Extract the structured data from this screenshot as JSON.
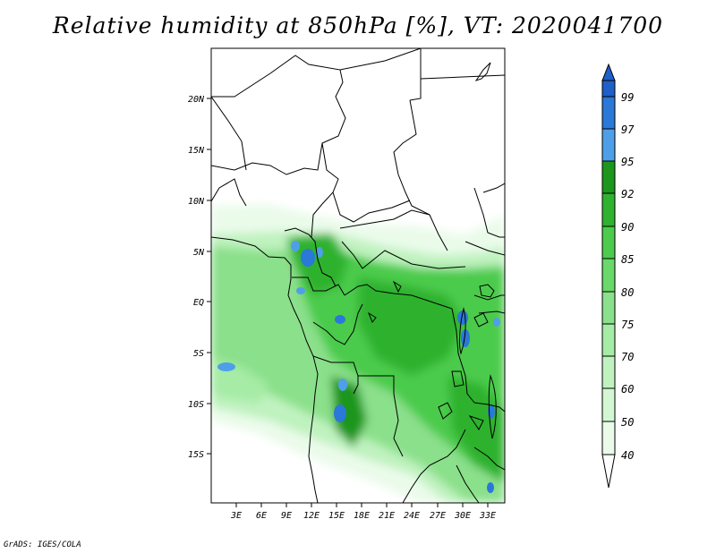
{
  "title": "Relative humidity at 850hPa [%], VT: 2020041700",
  "credit": "GrADS: IGES/COLA",
  "map": {
    "lat_ticks": [
      "20N",
      "15N",
      "10N",
      "5N",
      "EQ",
      "5S",
      "10S",
      "15S"
    ],
    "lon_ticks": [
      "3E",
      "6E",
      "9E",
      "12E",
      "15E",
      "18E",
      "21E",
      "24E",
      "27E",
      "30E",
      "33E"
    ]
  },
  "colorbar": {
    "labels": [
      "99",
      "97",
      "95",
      "92",
      "90",
      "85",
      "80",
      "75",
      "70",
      "60",
      "50",
      "40"
    ],
    "colors": {
      "lt40": "#ffffff",
      "40-50": "#eafbea",
      "50-60": "#d3f7d3",
      "60-70": "#bff2bf",
      "70-75": "#a6eba6",
      "75-80": "#8be08b",
      "80-85": "#6ad86a",
      "85-90": "#4ccb4c",
      "90-92": "#2fb22f",
      "92-95": "#1c961c",
      "95-97": "#4f9fe8",
      "97-99": "#2a78d8",
      "gt99": "#1e5fc8"
    }
  }
}
